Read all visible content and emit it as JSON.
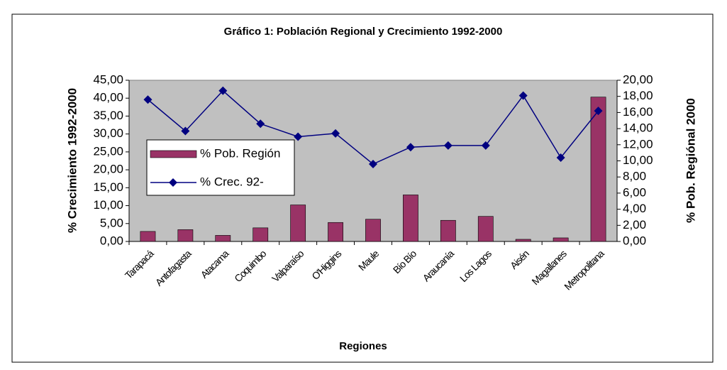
{
  "chart_data": {
    "type": "bar-line",
    "title": "Gráfico 1: Población Regional y Crecimiento 1992-2000",
    "x_label": "Regiones",
    "y_label": "% Crecimiento 1992-2000",
    "y2_label": "% Pob. Regiónal 2000",
    "categories": [
      "Tarapacá",
      "Antofagasta",
      "Atacama",
      "Coquimbo",
      "Valparaíso",
      "O'Higgins",
      "Maule",
      "Bío Bío",
      "Araucanía",
      "Los Lagos",
      "Aisén",
      "Magallanes",
      "Metropolitana"
    ],
    "series": [
      {
        "name": "% Pob. Región",
        "type": "bar",
        "color": "#993366",
        "values": [
          2.8,
          3.3,
          1.7,
          3.8,
          10.2,
          5.3,
          6.2,
          13.0,
          5.9,
          7.0,
          0.6,
          1.0,
          40.3
        ]
      },
      {
        "name": "% Crec. 92-",
        "type": "line",
        "axis": "y2",
        "color": "#000080",
        "values": [
          17.6,
          13.7,
          18.7,
          14.6,
          13.0,
          13.4,
          9.6,
          11.7,
          11.9,
          11.9,
          18.1,
          10.4,
          16.2
        ]
      }
    ],
    "ylim": [
      0,
      45
    ],
    "yticks": [
      {
        "value": 0,
        "label": "0,00"
      },
      {
        "value": 5,
        "label": "5,00"
      },
      {
        "value": 10,
        "label": "10,00"
      },
      {
        "value": 15,
        "label": "15,00"
      },
      {
        "value": 20,
        "label": "20,00"
      },
      {
        "value": 25,
        "label": "25,00"
      },
      {
        "value": 30,
        "label": "30,00"
      },
      {
        "value": 35,
        "label": "35,00"
      },
      {
        "value": 40,
        "label": "40,00"
      },
      {
        "value": 45,
        "label": "45,00"
      }
    ],
    "y2lim": [
      0,
      20
    ],
    "y2ticks": [
      {
        "value": 0,
        "label": "0,00"
      },
      {
        "value": 2,
        "label": "2,00"
      },
      {
        "value": 4,
        "label": "4,00"
      },
      {
        "value": 6,
        "label": "6,00"
      },
      {
        "value": 8,
        "label": "8,00"
      },
      {
        "value": 10,
        "label": "10,00"
      },
      {
        "value": 12,
        "label": "12,00"
      },
      {
        "value": 14,
        "label": "14,00"
      },
      {
        "value": 16,
        "label": "16,00"
      },
      {
        "value": 18,
        "label": "18,00"
      },
      {
        "value": 20,
        "label": "20,00"
      }
    ],
    "legend": "left"
  }
}
